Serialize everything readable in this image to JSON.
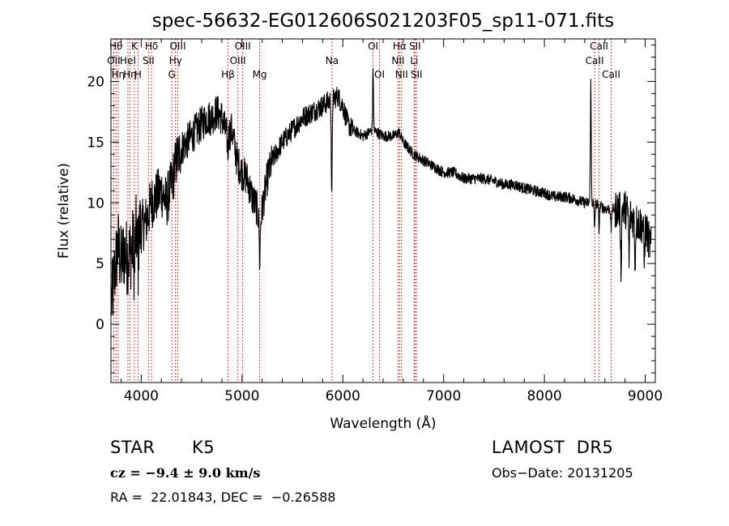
{
  "chart_data": {
    "type": "line",
    "title": "spec-56632-EG012606S021203F05_sp11-071.fits",
    "xlabel": "Wavelength (Å)",
    "ylabel": "Flux (relative)",
    "xlim": [
      3700,
      9100
    ],
    "ylim": [
      -4.8,
      23.5
    ],
    "xticks": [
      4000,
      5000,
      6000,
      7000,
      8000,
      9000
    ],
    "yticks": [
      0,
      5,
      10,
      15,
      20
    ],
    "grid": false,
    "legend": "none",
    "line_color": "#000000",
    "marker_color": "#cc0000",
    "spectrum_anchors": [
      [
        3710,
        2.0
      ],
      [
        3740,
        4.5
      ],
      [
        3770,
        6.5
      ],
      [
        3800,
        5.0
      ],
      [
        3830,
        6.0
      ],
      [
        3860,
        5.5
      ],
      [
        3900,
        6.0
      ],
      [
        3950,
        7.5
      ],
      [
        4000,
        8.0
      ],
      [
        4050,
        8.5
      ],
      [
        4100,
        10.0
      ],
      [
        4150,
        10.5
      ],
      [
        4200,
        11.0
      ],
      [
        4250,
        10.0
      ],
      [
        4300,
        11.5
      ],
      [
        4350,
        13.5
      ],
      [
        4400,
        14.5
      ],
      [
        4450,
        15.0
      ],
      [
        4500,
        15.5
      ],
      [
        4550,
        16.0
      ],
      [
        4600,
        16.5
      ],
      [
        4650,
        17.0
      ],
      [
        4700,
        17.0
      ],
      [
        4750,
        17.5
      ],
      [
        4800,
        17.0
      ],
      [
        4850,
        15.5
      ],
      [
        4900,
        16.0
      ],
      [
        4950,
        13.5
      ],
      [
        5000,
        12.5
      ],
      [
        5050,
        12.0
      ],
      [
        5100,
        10.5
      ],
      [
        5150,
        9.5
      ],
      [
        5180,
        8.0
      ],
      [
        5200,
        9.5
      ],
      [
        5250,
        12.0
      ],
      [
        5300,
        13.5
      ],
      [
        5400,
        15.0
      ],
      [
        5500,
        16.0
      ],
      [
        5600,
        17.0
      ],
      [
        5700,
        17.5
      ],
      [
        5800,
        18.0
      ],
      [
        5850,
        18.3
      ],
      [
        5900,
        18.5
      ],
      [
        5950,
        18.8
      ],
      [
        6000,
        18.0
      ],
      [
        6050,
        16.5
      ],
      [
        6100,
        16.0
      ],
      [
        6200,
        15.5
      ],
      [
        6300,
        16.0
      ],
      [
        6400,
        15.5
      ],
      [
        6500,
        15.5
      ],
      [
        6560,
        15.8
      ],
      [
        6600,
        15.0
      ],
      [
        6700,
        14.0
      ],
      [
        6800,
        13.5
      ],
      [
        6900,
        13.0
      ],
      [
        7000,
        12.5
      ],
      [
        7100,
        12.5
      ],
      [
        7200,
        12.0
      ],
      [
        7300,
        12.0
      ],
      [
        7400,
        12.0
      ],
      [
        7500,
        11.8
      ],
      [
        7600,
        11.5
      ],
      [
        7700,
        11.5
      ],
      [
        7800,
        11.2
      ],
      [
        7900,
        11.0
      ],
      [
        8000,
        10.8
      ],
      [
        8100,
        10.5
      ],
      [
        8200,
        10.5
      ],
      [
        8300,
        10.3
      ],
      [
        8400,
        10.0
      ],
      [
        8450,
        10.0
      ],
      [
        8500,
        10.0
      ],
      [
        8600,
        9.5
      ],
      [
        8700,
        9.5
      ],
      [
        8800,
        9.5
      ],
      [
        8900,
        8.5
      ],
      [
        9000,
        8.0
      ],
      [
        9050,
        6.5
      ]
    ],
    "spectral_features": [
      {
        "x": 8498,
        "depth": -2.0
      },
      {
        "x": 8542,
        "depth": -2.0
      },
      {
        "x": 8662,
        "depth": -1.8
      },
      {
        "x": 8460,
        "depth": 10.0
      },
      {
        "x": 5890,
        "depth": -8.5
      },
      {
        "x": 6300,
        "depth": 5.0
      },
      {
        "x": 5175,
        "depth": -3.0
      },
      {
        "x": 4860,
        "depth": -1.5
      },
      {
        "x": 3933,
        "depth": -3.0
      },
      {
        "x": 3968,
        "depth": -3.0
      },
      {
        "x": 8760,
        "depth": -5.0
      },
      {
        "x": 8840,
        "depth": -4.0
      },
      {
        "x": 8900,
        "depth": -3.5
      },
      {
        "x": 8990,
        "depth": -3.0
      }
    ],
    "lines": [
      {
        "x": 3727,
        "label": "OII",
        "row": 1
      },
      {
        "x": 3750,
        "label": "Hθ",
        "row": 0
      },
      {
        "x": 3771,
        "label": "Hη",
        "row": 2
      },
      {
        "x": 3868,
        "label": "HeI",
        "row": 1
      },
      {
        "x": 3888,
        "label": "Hη",
        "row": 2
      },
      {
        "x": 3933,
        "label": "K",
        "row": 0
      },
      {
        "x": 3968,
        "label": "H",
        "row": 2
      },
      {
        "x": 4072,
        "label": "SII",
        "row": 1
      },
      {
        "x": 4102,
        "label": "Hδ",
        "row": 0
      },
      {
        "x": 4304,
        "label": "G",
        "row": 2
      },
      {
        "x": 4340,
        "label": "Hγ",
        "row": 1
      },
      {
        "x": 4363,
        "label": "OIII",
        "row": 0
      },
      {
        "x": 4861,
        "label": "Hβ",
        "row": 2
      },
      {
        "x": 4959,
        "label": "OIII",
        "row": 1
      },
      {
        "x": 5007,
        "label": "OIII",
        "row": 0
      },
      {
        "x": 5175,
        "label": "Mg",
        "row": 2
      },
      {
        "x": 5893,
        "label": "Na",
        "row": 1
      },
      {
        "x": 6300,
        "label": "OI",
        "row": 0
      },
      {
        "x": 6364,
        "label": "OI",
        "row": 2
      },
      {
        "x": 6548,
        "label": "NII",
        "row": 1
      },
      {
        "x": 6563,
        "label": "Hα",
        "row": 0
      },
      {
        "x": 6583,
        "label": "NII",
        "row": 2
      },
      {
        "x": 6708,
        "label": "Li",
        "row": 1
      },
      {
        "x": 6716,
        "label": "SII",
        "row": 0
      },
      {
        "x": 6731,
        "label": "SII",
        "row": 2
      },
      {
        "x": 8498,
        "label": "CaII",
        "row": 1
      },
      {
        "x": 8542,
        "label": "CaII",
        "row": 0
      },
      {
        "x": 8662,
        "label": "CaII",
        "row": 2
      }
    ]
  },
  "info": {
    "object_class": "STAR",
    "subclass": "K5",
    "survey": "LAMOST  DR5",
    "cz": "cz = −9.4 ± 9.0 km/s",
    "obs_date": "Obs−Date: 20131205",
    "radec": "RA =  22.01843, DEC =  −0.26588"
  }
}
